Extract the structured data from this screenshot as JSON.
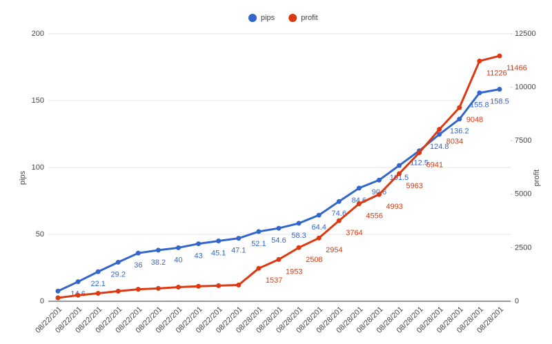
{
  "chart_data": {
    "type": "line",
    "categories": [
      "08/22/201",
      "08/22/201",
      "08/22/201",
      "08/22/201",
      "08/22/201",
      "08/22/201",
      "08/22/201",
      "08/22/201",
      "08/22/201",
      "08/22/201",
      "08/28/201",
      "08/28/201",
      "08/28/201",
      "08/28/201",
      "08/28/201",
      "08/28/201",
      "08/28/201",
      "08/28/201",
      "08/28/201",
      "08/28/201",
      "08/28/201",
      "08/28/201",
      "08/28/201"
    ],
    "series": [
      {
        "name": "pips",
        "color": "#3366cc",
        "values": [
          7.6,
          14.6,
          22.1,
          29.2,
          36,
          38.2,
          40,
          43,
          45.1,
          47.1,
          52.1,
          54.6,
          58.3,
          64.4,
          74.6,
          84.6,
          90.6,
          101.5,
          112.5,
          124.8,
          136.2,
          155.8,
          158.5
        ],
        "value_labels": [
          null,
          "14.6",
          "22.1",
          "29.2",
          "36",
          "38.2",
          "40",
          "43",
          "45.1",
          "47.1",
          "52.1",
          "54.6",
          "58.3",
          "64.4",
          "74.6",
          "84.6",
          "90.6",
          "101.5",
          "112.5",
          "124.8",
          "136.2",
          "155.8",
          "158.5"
        ]
      },
      {
        "name": "profit",
        "color": "#dc3912",
        "axis": "y2",
        "values": [
          160,
          280,
          370,
          470,
          560,
          600,
          660,
          700,
          730,
          760,
          1537,
          1953,
          2508,
          2954,
          3764,
          4556,
          4993,
          5963,
          6941,
          8034,
          9048,
          11226,
          11466
        ],
        "value_labels": [
          null,
          null,
          null,
          null,
          null,
          null,
          null,
          null,
          null,
          null,
          "1537",
          "1953",
          "2508",
          "2954",
          "3764",
          "4556",
          "4993",
          "5963",
          "6941",
          "8034",
          "9048",
          "11226",
          "11466"
        ]
      }
    ],
    "ylabel": "pips",
    "y2label": "profit",
    "ylim": [
      0,
      200
    ],
    "yticks": [
      0,
      50,
      100,
      150,
      200
    ],
    "y2lim": [
      0,
      12500
    ],
    "y2ticks": [
      0,
      2500,
      5000,
      7500,
      10000,
      12500
    ],
    "grid": true,
    "legend": "top"
  }
}
